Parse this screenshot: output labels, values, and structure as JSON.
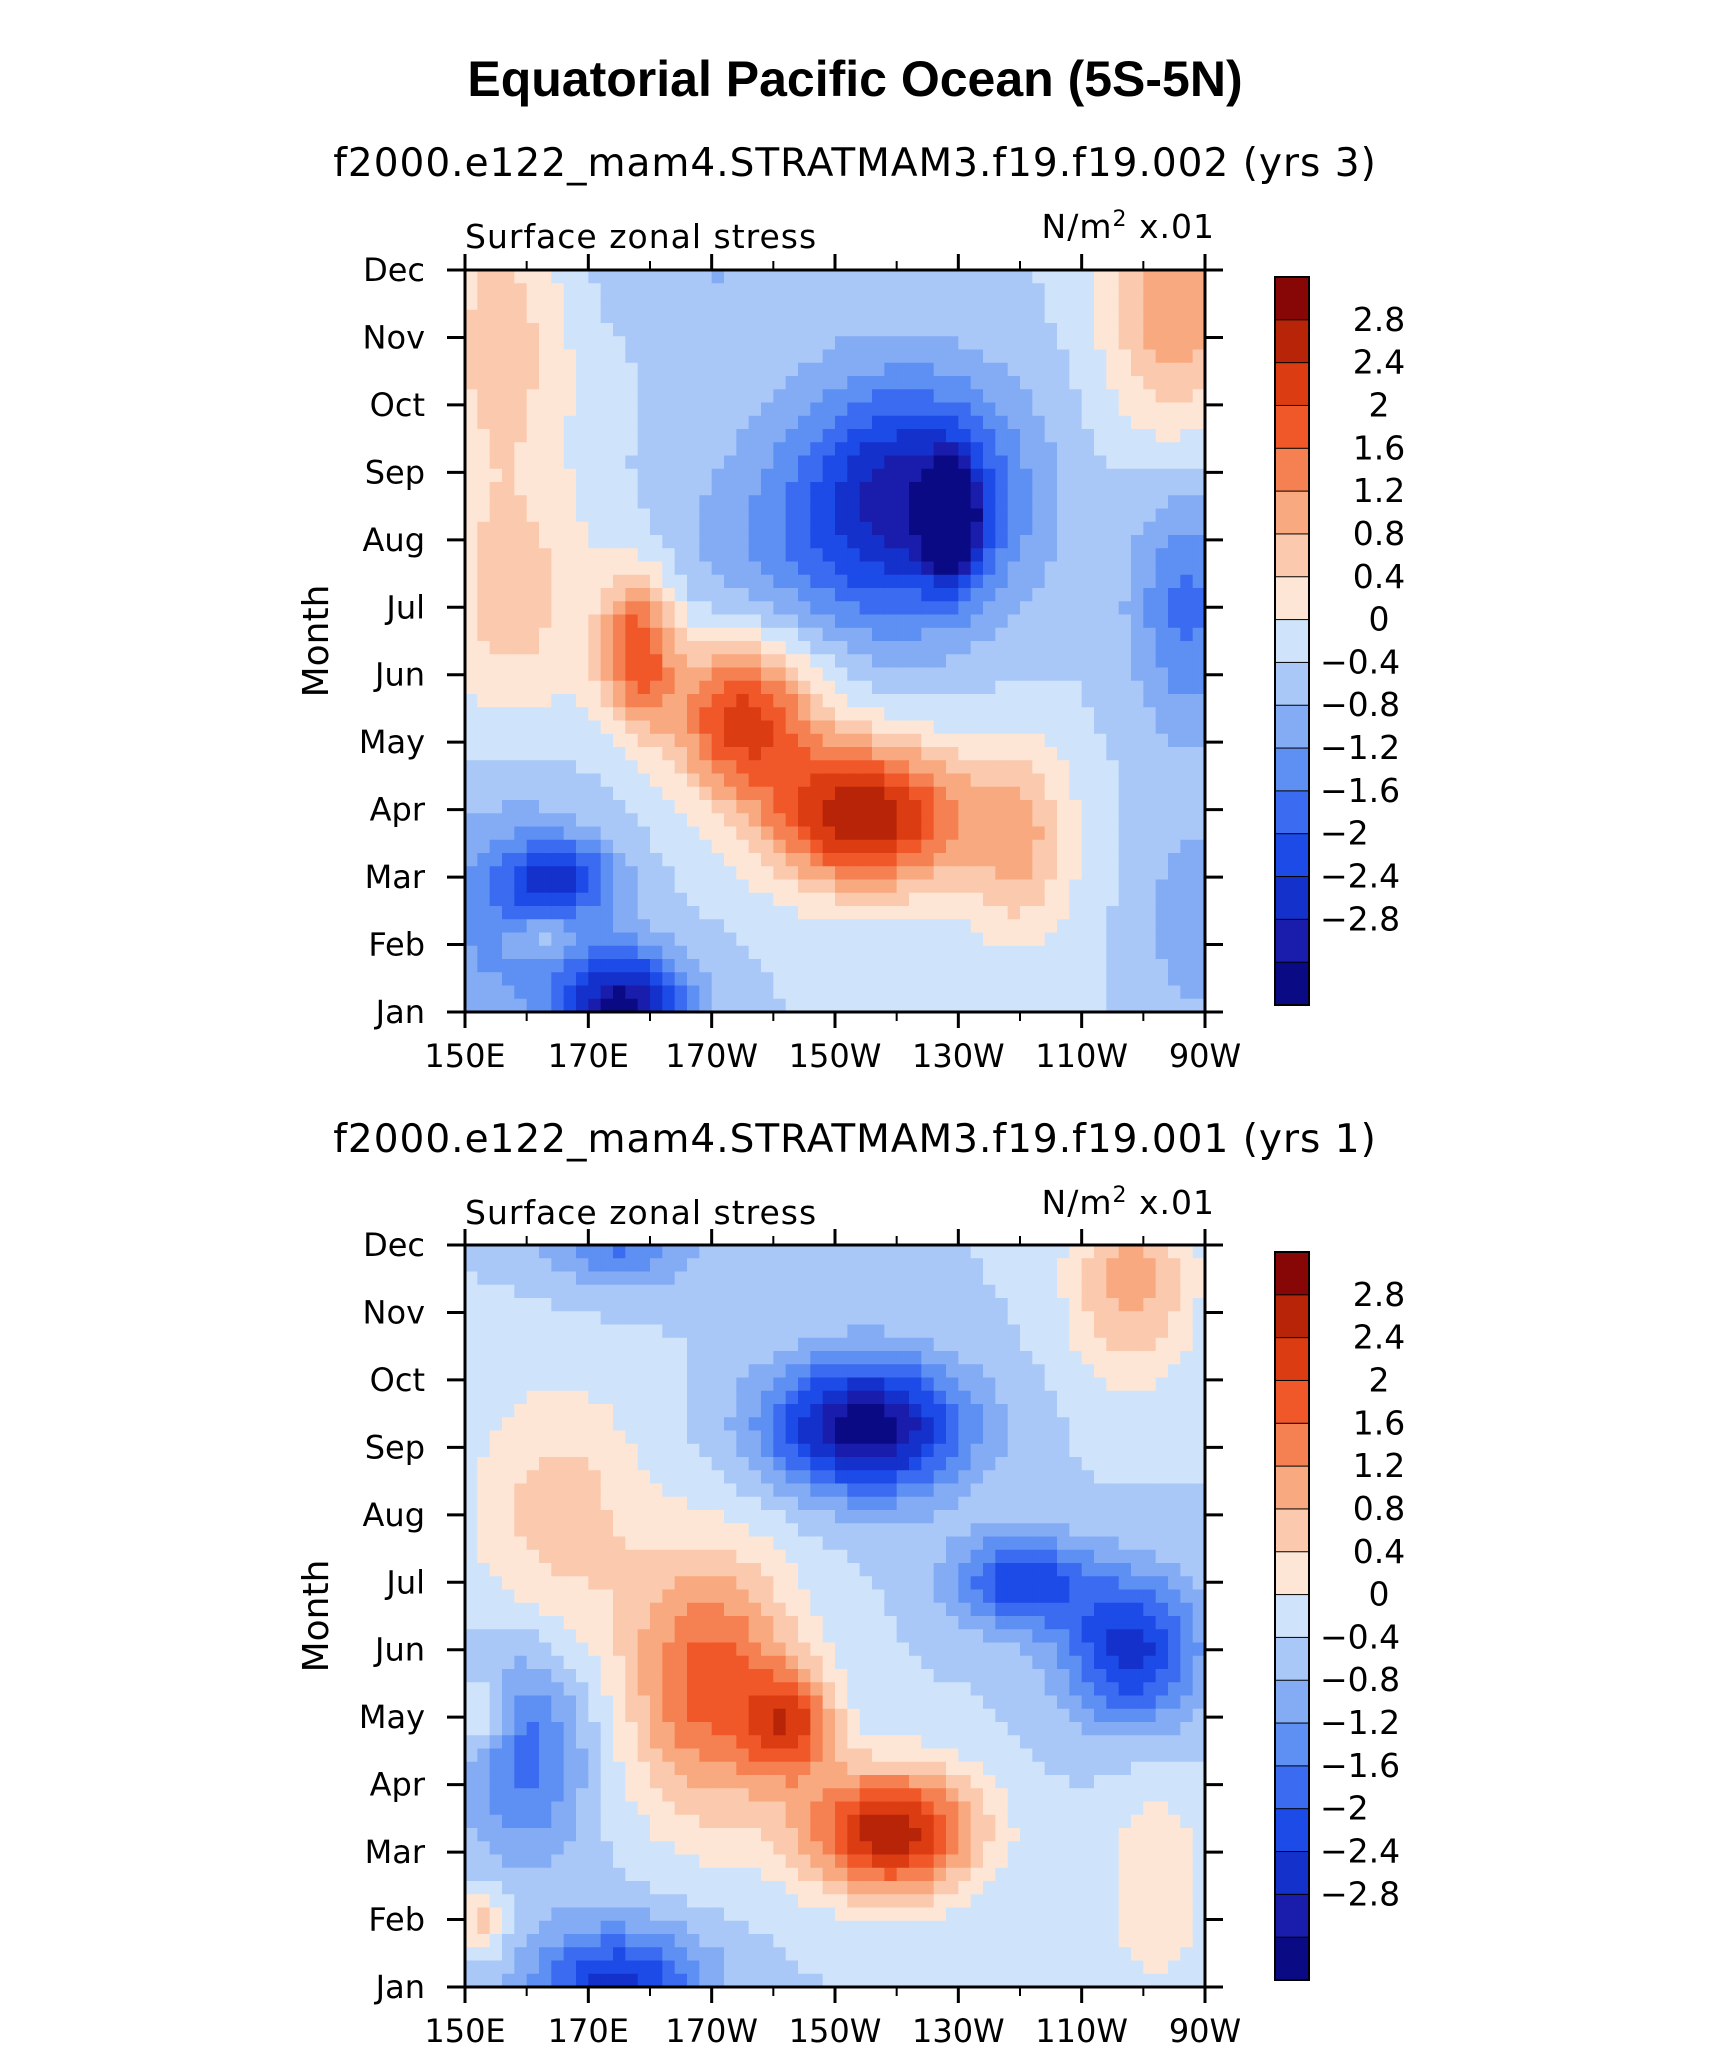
{
  "figure": {
    "title": "Equatorial Pacific Ocean (5S-5N)"
  },
  "colors": {
    "levels": [
      "#0a0a85",
      "#1a1cab",
      "#1431cc",
      "#1c4be8",
      "#3b6bf0",
      "#5e8ff2",
      "#84acf5",
      "#a9c8f8",
      "#cfe4fb",
      "#fde6d6",
      "#fbc9ad",
      "#f9a97f",
      "#f58152",
      "#f0582a",
      "#db3c12",
      "#b82408",
      "#870606"
    ]
  },
  "chart_data": [
    {
      "type": "heatmap",
      "subtitle": "f2000.e122_mam4.STRATMAM3.f19.f19.002 (yrs 3)",
      "left_label": "Surface zonal stress",
      "right_label_main": "N/m",
      "right_label_sup": "2",
      "right_label_tail": " x.01",
      "ylabel": "Month",
      "xlabel": "",
      "x_ticks": [
        "150E",
        "170E",
        "170W",
        "150W",
        "130W",
        "110W",
        "90W"
      ],
      "x_tick_lon": [
        150,
        170,
        190,
        210,
        230,
        250,
        270
      ],
      "y_ticks": [
        "Jan",
        "Feb",
        "Mar",
        "Apr",
        "May",
        "Jun",
        "Jul",
        "Aug",
        "Sep",
        "Oct",
        "Nov",
        "Dec"
      ],
      "x_range": [
        150,
        270
      ],
      "colorbar_labels": [
        "2.8",
        "2.4",
        "2",
        "1.6",
        "1.2",
        "0.8",
        "0.4",
        "0",
        "−0.4",
        "−0.8",
        "−1.2",
        "−1.6",
        "−2",
        "−2.4",
        "−2.8"
      ],
      "colorbar_levels": [
        -2.8,
        -2.4,
        -2.0,
        -1.6,
        -1.2,
        -0.8,
        -0.4,
        0,
        0.4,
        0.8,
        1.2,
        1.6,
        2.0,
        2.4,
        2.8
      ],
      "units": "N/m2 x.01",
      "features": [
        {
          "lon": 156,
          "month": 10,
          "value": 1.0,
          "wx": 12,
          "wy": 2.6
        },
        {
          "lon": 158,
          "month": 6,
          "value": 0.9,
          "wx": 14,
          "wy": 1.8
        },
        {
          "lon": 158,
          "month": 1.5,
          "value": -1.2,
          "wx": 14,
          "wy": 1.6
        },
        {
          "lon": 166,
          "month": 2.0,
          "value": -1.6,
          "wx": 8,
          "wy": 0.5
        },
        {
          "lon": 162,
          "month": 1.1,
          "value": 0.8,
          "wx": 6,
          "wy": 0.35
        },
        {
          "lon": 176,
          "month": 0.0,
          "value": -3.0,
          "wx": 10,
          "wy": 0.9
        },
        {
          "lon": 215,
          "month": 2.9,
          "value": 3.2,
          "wx": 16,
          "wy": 1.1
        },
        {
          "lon": 195,
          "month": 4.4,
          "value": 2.6,
          "wx": 12,
          "wy": 1.2
        },
        {
          "lon": 178,
          "month": 5.4,
          "value": 2.2,
          "wx": 6,
          "wy": 1.1
        },
        {
          "lon": 240,
          "month": 2.5,
          "value": 1.2,
          "wx": 9,
          "wy": 1.5
        },
        {
          "lon": 222,
          "month": 7.6,
          "value": -2.6,
          "wx": 18,
          "wy": 1.8
        },
        {
          "lon": 229,
          "month": 7.3,
          "value": -3.0,
          "wx": 4,
          "wy": 0.8
        },
        {
          "lon": 200,
          "month": 6.8,
          "value": -0.6,
          "wx": 18,
          "wy": 1.7
        },
        {
          "lon": 190,
          "month": 11.0,
          "value": -0.4,
          "wx": 22,
          "wy": 1.0
        },
        {
          "lon": 265,
          "month": 10.4,
          "value": 1.5,
          "wx": 11,
          "wy": 1.9
        },
        {
          "lon": 267,
          "month": 6.0,
          "value": -1.3,
          "wx": 9,
          "wy": 1.8
        },
        {
          "lon": 268,
          "month": 1.4,
          "value": -0.7,
          "wx": 8,
          "wy": 1.5
        }
      ]
    },
    {
      "type": "heatmap",
      "subtitle": "f2000.e122_mam4.STRATMAM3.f19.f19.001 (yrs 1)",
      "left_label": "Surface zonal stress",
      "right_label_main": "N/m",
      "right_label_sup": "2",
      "right_label_tail": " x.01",
      "ylabel": "Month",
      "xlabel": "",
      "x_ticks": [
        "150E",
        "170E",
        "170W",
        "150W",
        "130W",
        "110W",
        "90W"
      ],
      "x_tick_lon": [
        150,
        170,
        190,
        210,
        230,
        250,
        270
      ],
      "y_ticks": [
        "Jan",
        "Feb",
        "Mar",
        "Apr",
        "May",
        "Jun",
        "Jul",
        "Aug",
        "Sep",
        "Oct",
        "Nov",
        "Dec"
      ],
      "x_range": [
        150,
        270
      ],
      "colorbar_labels": [
        "2.8",
        "2.4",
        "2",
        "1.6",
        "1.2",
        "0.8",
        "0.4",
        "0",
        "−0.4",
        "−0.8",
        "−1.2",
        "−1.6",
        "−2",
        "−2.4",
        "−2.8"
      ],
      "colorbar_levels": [
        -2.8,
        -2.4,
        -2.0,
        -1.6,
        -1.2,
        -0.8,
        -0.4,
        0,
        0.4,
        0.8,
        1.2,
        1.6,
        2.0,
        2.4,
        2.8
      ],
      "units": "N/m2 x.01",
      "features": [
        {
          "lon": 165,
          "month": 7.0,
          "value": 1.0,
          "wx": 14,
          "wy": 2.0
        },
        {
          "lon": 160,
          "month": 3.5,
          "value": -1.4,
          "wx": 10,
          "wy": 1.6
        },
        {
          "lon": 153,
          "month": 4.0,
          "value": 1.1,
          "wx": 4,
          "wy": 0.5
        },
        {
          "lon": 153,
          "month": 1.0,
          "value": 1.0,
          "wx": 4,
          "wy": 0.5
        },
        {
          "lon": 175,
          "month": 0.0,
          "value": -2.2,
          "wx": 14,
          "wy": 0.9
        },
        {
          "lon": 175,
          "month": 11.2,
          "value": -1.4,
          "wx": 12,
          "wy": 0.8
        },
        {
          "lon": 190,
          "month": 4.5,
          "value": 2.2,
          "wx": 14,
          "wy": 2.0
        },
        {
          "lon": 219,
          "month": 2.3,
          "value": 3.1,
          "wx": 14,
          "wy": 0.95
        },
        {
          "lon": 203,
          "month": 3.9,
          "value": 1.9,
          "wx": 7,
          "wy": 0.8
        },
        {
          "lon": 215,
          "month": 8.3,
          "value": -3.1,
          "wx": 16,
          "wy": 1.0
        },
        {
          "lon": 240,
          "month": 6.0,
          "value": -1.9,
          "wx": 11,
          "wy": 0.7
        },
        {
          "lon": 258,
          "month": 5.0,
          "value": -2.2,
          "wx": 11,
          "wy": 1.1
        },
        {
          "lon": 258,
          "month": 10.5,
          "value": 1.4,
          "wx": 10,
          "wy": 1.5
        },
        {
          "lon": 262,
          "month": 1.5,
          "value": 0.8,
          "wx": 8,
          "wy": 1.5
        }
      ]
    }
  ]
}
